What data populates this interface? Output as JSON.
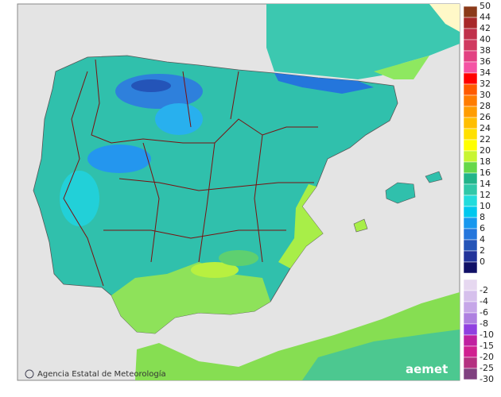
{
  "footer": {
    "credit": "Agencia Estatal de Meteorología",
    "logo": "aemet"
  },
  "legend": {
    "warm": [
      {
        "label": 50,
        "color": "#8b3a1a"
      },
      {
        "label": 44,
        "color": "#a8282a"
      },
      {
        "label": 42,
        "color": "#c0304a"
      },
      {
        "label": 40,
        "color": "#d03a60"
      },
      {
        "label": 38,
        "color": "#e24282"
      },
      {
        "label": 36,
        "color": "#f454a4"
      },
      {
        "label": 34,
        "color": "#ff0000"
      },
      {
        "label": 32,
        "color": "#ff5a00"
      },
      {
        "label": 30,
        "color": "#ff7c00"
      },
      {
        "label": 28,
        "color": "#ff9c00"
      },
      {
        "label": 26,
        "color": "#ffbe00"
      },
      {
        "label": 24,
        "color": "#ffe000"
      },
      {
        "label": 22,
        "color": "#ffff00"
      },
      {
        "label": 20,
        "color": "#c8f532"
      },
      {
        "label": 18,
        "color": "#66d84a"
      },
      {
        "label": 16,
        "color": "#22b48a"
      },
      {
        "label": 14,
        "color": "#30c8a8"
      },
      {
        "label": 12,
        "color": "#22dcdc"
      },
      {
        "label": 10,
        "color": "#00c8ee"
      },
      {
        "label": 8,
        "color": "#1898ee"
      },
      {
        "label": 6,
        "color": "#2476dc"
      },
      {
        "label": 4,
        "color": "#2454b8"
      },
      {
        "label": 2,
        "color": "#22349a"
      },
      {
        "label": 0,
        "color": "#101066"
      }
    ],
    "cold": [
      {
        "label": -2,
        "color": "#e6d8f0"
      },
      {
        "label": -4,
        "color": "#d6c0ec"
      },
      {
        "label": -6,
        "color": "#c6a6e8"
      },
      {
        "label": -8,
        "color": "#ae80e0"
      },
      {
        "label": -10,
        "color": "#9040e0"
      },
      {
        "label": -15,
        "color": "#c020a0"
      },
      {
        "label": -20,
        "color": "#d02090"
      },
      {
        "label": -25,
        "color": "#b43080"
      },
      {
        "label": -30,
        "color": "#804080"
      }
    ]
  }
}
